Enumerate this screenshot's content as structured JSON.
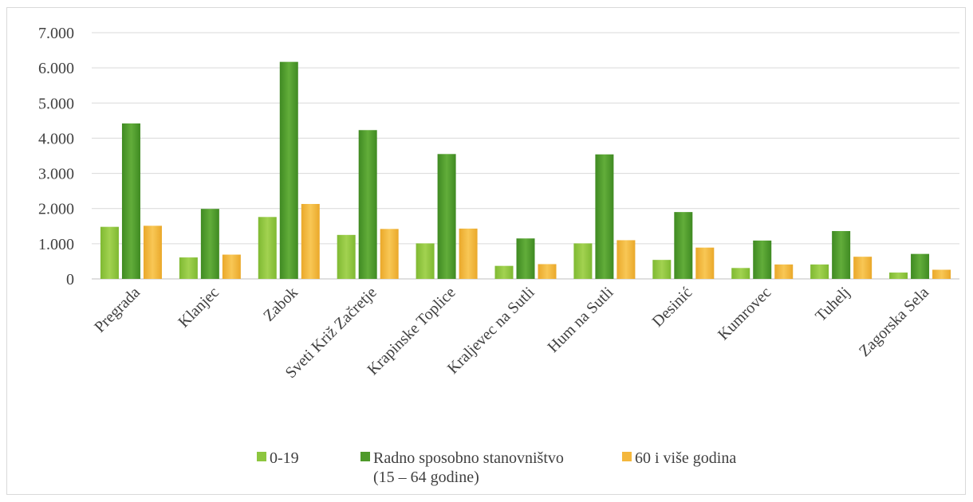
{
  "chart_data": {
    "type": "bar",
    "categories": [
      "Pregrada",
      "Klanjec",
      "Zabok",
      "Sveti Križ Začretje",
      "Krapinske Toplice",
      "Kraljevec na Sutli",
      "Hum na Sutli",
      "Desinić",
      "Kumrovec",
      "Tuhelj",
      "Zagorska Sela"
    ],
    "series": [
      {
        "name": "0-19",
        "color": "#8dc63f",
        "values": [
          1480,
          610,
          1760,
          1250,
          1010,
          370,
          1010,
          540,
          310,
          410,
          180
        ]
      },
      {
        "name": "Radno sposobno stanovništvo\n(15 – 64 godine)",
        "color": "#4e9a2a",
        "values": [
          4420,
          1990,
          6170,
          4230,
          3550,
          1150,
          3540,
          1900,
          1090,
          1360,
          710
        ]
      },
      {
        "name": "60 i više godina",
        "color": "#f4b73c",
        "values": [
          1510,
          690,
          2130,
          1420,
          1430,
          420,
          1100,
          890,
          410,
          630,
          260
        ]
      }
    ],
    "ylim": [
      0,
      7000
    ],
    "yticks": [
      "0",
      "1.000",
      "2.000",
      "3.000",
      "4.000",
      "5.000",
      "6.000",
      "7.000"
    ],
    "ytick_values": [
      0,
      1000,
      2000,
      3000,
      4000,
      5000,
      6000,
      7000
    ],
    "grid": true,
    "legend": "bottom"
  }
}
